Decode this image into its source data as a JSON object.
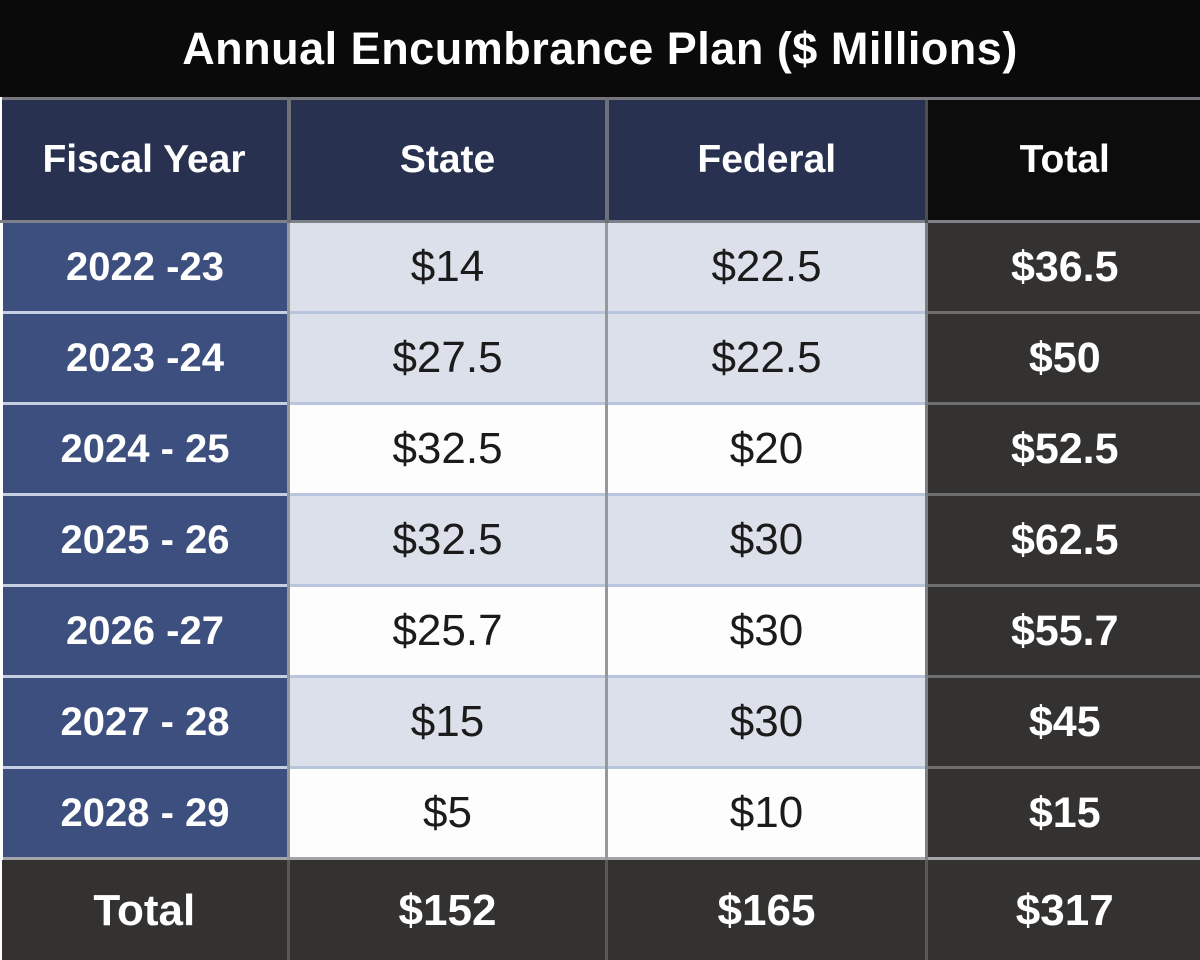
{
  "title": "Annual Encumbrance Plan ($ Millions)",
  "table": {
    "col_headers": {
      "fiscal_year": "Fiscal Year",
      "state": "State",
      "federal": "Federal",
      "total": "Total"
    },
    "rows": [
      {
        "fiscal_year": "2022 -23",
        "state": "$14",
        "federal": "$22.5",
        "total": "$36.5"
      },
      {
        "fiscal_year": "2023 -24",
        "state": "$27.5",
        "federal": "$22.5",
        "total": "$50"
      },
      {
        "fiscal_year": "2024 - 25",
        "state": "$32.5",
        "federal": "$20",
        "total": "$52.5"
      },
      {
        "fiscal_year": "2025 - 26",
        "state": "$32.5",
        "federal": "$30",
        "total": "$62.5"
      },
      {
        "fiscal_year": "2026 -27",
        "state": "$25.7",
        "federal": "$30",
        "total": "$55.7"
      },
      {
        "fiscal_year": "2027 - 28",
        "state": "$15",
        "federal": "$30",
        "total": "$45"
      },
      {
        "fiscal_year": "2028 - 29",
        "state": "$5",
        "federal": "$10",
        "total": "$15"
      }
    ],
    "totals_row": {
      "label": "Total",
      "state": "$152",
      "federal": "$165",
      "total": "$317"
    }
  },
  "chart_data": {
    "type": "table",
    "title": "Annual Encumbrance Plan ($ Millions)",
    "units": "$ Millions",
    "columns": [
      "Fiscal Year",
      "State",
      "Federal",
      "Total"
    ],
    "rows": [
      [
        "2022 -23",
        14,
        22.5,
        36.5
      ],
      [
        "2023 -24",
        27.5,
        22.5,
        50
      ],
      [
        "2024 - 25",
        32.5,
        20,
        52.5
      ],
      [
        "2025 - 26",
        32.5,
        30,
        62.5
      ],
      [
        "2026 -27",
        25.7,
        30,
        55.7
      ],
      [
        "2027 - 28",
        15,
        30,
        45
      ],
      [
        "2028 - 29",
        5,
        10,
        15
      ]
    ],
    "totals": [
      "Total",
      152,
      165,
      317
    ]
  },
  "colors": {
    "title_bg": "#0b0a0a",
    "header_navy": "#283250",
    "header_black": "#0d0c0c",
    "fiscal_cell_blue": "#3d4f7e",
    "light_cell": "#dbe0ea",
    "white_cell": "#fdfdfe",
    "dark_cell": "#333231",
    "text_white": "#ffffff",
    "text_black": "#1b1b1b"
  }
}
